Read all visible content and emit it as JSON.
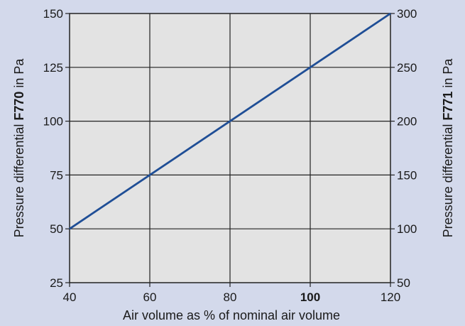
{
  "chart_data": {
    "type": "line",
    "xlabel": "Air volume as % of nominal air volume",
    "ylabel_left": {
      "prefix": "Pressure differential ",
      "bold": "F770",
      "suffix": " in Pa"
    },
    "ylabel_right": {
      "prefix": "Pressure differential ",
      "bold": "F771",
      "suffix": " in Pa"
    },
    "xlim": [
      40,
      120
    ],
    "ylim_left": [
      25,
      150
    ],
    "ylim_right": [
      50,
      300
    ],
    "x_ticks": [
      40,
      60,
      80,
      100,
      120
    ],
    "x_tick_bold": [
      100
    ],
    "y_ticks_left": [
      25,
      50,
      75,
      100,
      125,
      150
    ],
    "y_ticks_right": [
      50,
      100,
      150,
      200,
      250,
      300
    ],
    "grid": true,
    "series": [
      {
        "x": [
          40,
          120
        ],
        "y": [
          50,
          150
        ],
        "color": "#1f4e96"
      }
    ],
    "colors": {
      "plot_bg": "#e3e3e3",
      "page_bg": "#d3d9eb",
      "grid": "#222222"
    }
  }
}
